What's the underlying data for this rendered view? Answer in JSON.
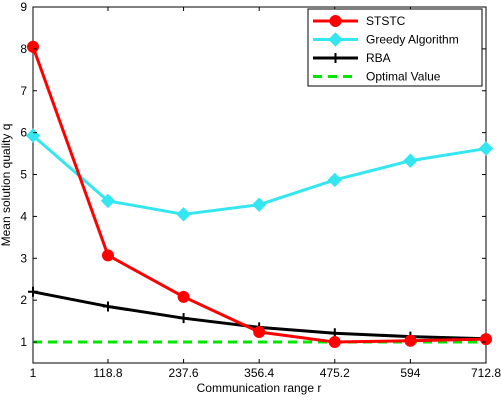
{
  "chart_data": {
    "type": "line",
    "title": "",
    "xlabel": "Communication range r",
    "ylabel": "Mean solution quality q",
    "x": [
      1,
      118.8,
      237.6,
      356.4,
      475.2,
      594,
      712.8
    ],
    "x_tick_labels": [
      "1",
      "118.8",
      "237.6",
      "356.4",
      "475.2",
      "594",
      "712.8"
    ],
    "xlim": [
      1,
      712.8
    ],
    "ylim": [
      0.5,
      9
    ],
    "y_ticks": [
      1,
      2,
      3,
      4,
      5,
      6,
      7,
      8,
      9
    ],
    "y_tick_labels": [
      "1",
      "2",
      "3",
      "4",
      "5",
      "6",
      "7",
      "8",
      "9"
    ],
    "grid": false,
    "legend_position": "top-right",
    "series": [
      {
        "name": "STSTC",
        "color": "#ff0000",
        "marker": "circle",
        "line": "solid",
        "values": [
          8.05,
          3.07,
          2.08,
          1.24,
          1.0,
          1.03,
          1.07
        ]
      },
      {
        "name": "Greedy Algorithm",
        "color": "#33e6f0",
        "marker": "diamond",
        "line": "solid",
        "values": [
          5.93,
          4.37,
          4.05,
          4.28,
          4.87,
          5.33,
          5.62
        ]
      },
      {
        "name": "RBA",
        "color": "#000000",
        "marker": "plus",
        "line": "solid",
        "values": [
          2.2,
          1.85,
          1.57,
          1.35,
          1.21,
          1.13,
          1.08
        ]
      },
      {
        "name": "Optimal Value",
        "color": "#00e600",
        "marker": "none",
        "line": "dashed",
        "values": [
          1,
          1,
          1,
          1,
          1,
          1,
          1
        ]
      }
    ]
  }
}
